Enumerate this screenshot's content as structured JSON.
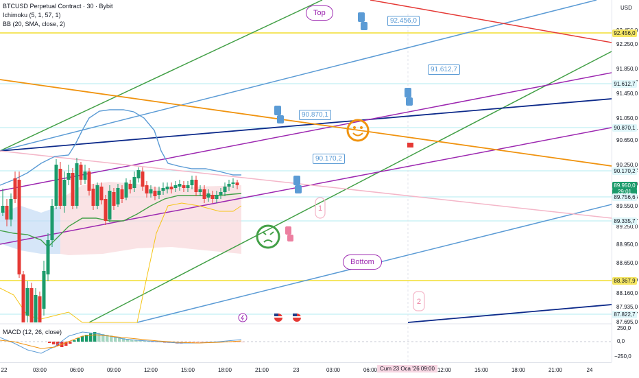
{
  "legend": {
    "symbol": "BTCUSD Perpetual Contract · 30 · Bybit",
    "ichimoku": "Ichimoku (5, 1, 57, 1)",
    "bb": "BB (20, SMA, close, 2)",
    "macd": "MACD (12, 26, close)"
  },
  "currency": "USD",
  "price_labels": [
    "92.456,0",
    "92.250,0",
    "91.850,0",
    "91.612,7",
    "91.450,0",
    "91.050,0",
    "90.870,1",
    "90.650,0",
    "90.250,0",
    "90.170,2",
    "89.950,0",
    "89.756,6",
    "89.550,0",
    "89.335,7",
    "89.250,0",
    "88.950,0",
    "88.650,0",
    "88.367,9",
    "88.160,0",
    "87.935,0",
    "87.822,7",
    "87.695,0"
  ],
  "tags": {
    "t1": "92.456,0",
    "t2": "91.612,7",
    "t3": "90.870,1",
    "t4": "90.170,2",
    "current_price": "89.950,0",
    "countdown": "29:01",
    "t5": "89.756,6",
    "t6": "89.335,7",
    "t7": "88.367,9",
    "t8": "87.822,7"
  },
  "macd_scale": [
    "250,0",
    "0,0",
    "−250,0"
  ],
  "time_labels": [
    "22",
    "03:00",
    "06:00",
    "09:00",
    "12:00",
    "15:00",
    "18:00",
    "21:00",
    "23",
    "03:00",
    "06:00",
    "Cum 23 Oca '26  09:00",
    "12:00",
    "15:00",
    "18:00",
    "21:00",
    "24"
  ],
  "annotations": {
    "top": "Top",
    "bottom": "Bottom",
    "c1": "92.456,0",
    "c2": "91.612,7",
    "c3": "90.870,1",
    "c4": "90.170,2",
    "wave1": "1",
    "wave2": "2"
  },
  "colors": {
    "green": "#43a047",
    "blue": "#5b9bd5",
    "navy": "#0d2a8a",
    "purple": "#9c27b0",
    "orange": "#f0930f",
    "red": "#e53935",
    "yellow": "#f5e663",
    "pink": "#f4b6c8",
    "bull": "#1b9b6b",
    "bear": "#e53935"
  }
}
